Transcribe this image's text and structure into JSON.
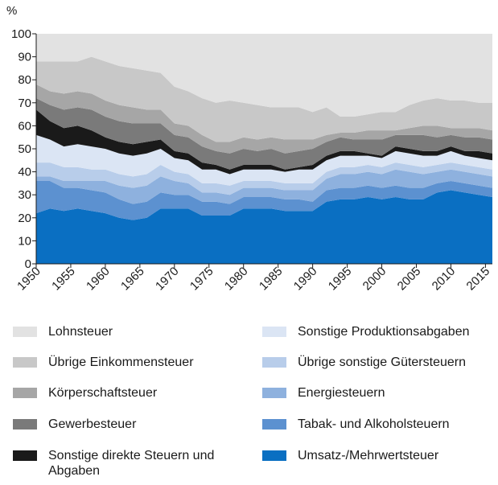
{
  "chart_data": {
    "type": "stacked_area",
    "y_label": "%",
    "x": [
      1950,
      1952,
      1954,
      1956,
      1958,
      1960,
      1962,
      1964,
      1966,
      1968,
      1970,
      1972,
      1974,
      1976,
      1978,
      1980,
      1982,
      1984,
      1986,
      1988,
      1990,
      1992,
      1994,
      1996,
      1998,
      2000,
      2002,
      2004,
      2006,
      2008,
      2010,
      2012,
      2014,
      2016
    ],
    "xlim": [
      1950,
      2016
    ],
    "xticks": [
      1950,
      1955,
      1960,
      1965,
      1970,
      1975,
      1980,
      1985,
      1990,
      1995,
      2000,
      2005,
      2010,
      2015
    ],
    "ylim": [
      0,
      100
    ],
    "yticks": [
      0,
      10,
      20,
      30,
      40,
      50,
      60,
      70,
      80,
      90,
      100
    ],
    "series": [
      {
        "name": "Umsatz-/Mehrwertsteuer",
        "color": "#0a6fc2",
        "values": [
          22,
          24,
          23,
          24,
          23,
          22,
          20,
          19,
          20,
          24,
          24,
          24,
          21,
          21,
          21,
          24,
          24,
          24,
          23,
          23,
          23,
          27,
          28,
          28,
          29,
          28,
          29,
          28,
          28,
          31,
          32,
          31,
          30,
          29
        ]
      },
      {
        "name": "Tabak- und Alkoholsteuern",
        "color": "#5c91d0",
        "values": [
          14,
          12,
          10,
          9,
          9,
          9,
          8,
          7,
          7,
          7,
          6,
          6,
          6,
          6,
          5,
          5,
          5,
          5,
          5,
          5,
          4,
          5,
          5,
          5,
          5,
          5,
          5,
          5,
          5,
          4,
          4,
          4,
          4,
          4
        ]
      },
      {
        "name": "Energiesteuern",
        "color": "#8eb1de",
        "values": [
          2,
          2,
          3,
          3,
          4,
          5,
          6,
          7,
          7,
          7,
          6,
          5,
          4,
          4,
          4,
          4,
          4,
          4,
          4,
          4,
          5,
          5,
          6,
          6,
          6,
          6,
          7,
          7,
          6,
          5,
          5,
          5,
          5,
          5
        ]
      },
      {
        "name": "Übrige sonstige Gütersteuern",
        "color": "#b8cdea",
        "values": [
          6,
          6,
          6,
          6,
          5,
          5,
          5,
          5,
          5,
          5,
          4,
          4,
          4,
          4,
          4,
          3,
          3,
          3,
          3,
          3,
          3,
          3,
          3,
          3,
          3,
          3,
          3,
          3,
          3,
          3,
          3,
          3,
          3,
          3
        ]
      },
      {
        "name": "Sonstige Produktionsabgaben",
        "color": "#dbe5f4",
        "values": [
          12,
          10,
          9,
          10,
          10,
          9,
          9,
          9,
          9,
          7,
          6,
          6,
          6,
          6,
          5,
          5,
          5,
          5,
          5,
          6,
          6,
          5,
          5,
          5,
          4,
          4,
          5,
          5,
          5,
          4,
          5,
          4,
          4,
          4
        ]
      },
      {
        "name": "Sonstige direkte Steuern und Abgaben",
        "color": "#1a1a1a",
        "values": [
          11,
          8,
          8,
          8,
          7,
          5,
          5,
          5,
          5,
          4,
          3,
          3,
          3,
          2,
          2,
          2,
          2,
          2,
          1,
          1,
          2,
          2,
          2,
          2,
          1,
          1,
          2,
          2,
          2,
          2,
          2,
          2,
          3,
          3
        ]
      },
      {
        "name": "Gewerbesteuer",
        "color": "#7a7a7a",
        "values": [
          5,
          7,
          8,
          8,
          9,
          9,
          9,
          9,
          8,
          7,
          7,
          7,
          7,
          6,
          7,
          7,
          6,
          7,
          7,
          7,
          7,
          6,
          6,
          5,
          6,
          7,
          5,
          6,
          7,
          6,
          5,
          6,
          6,
          6
        ]
      },
      {
        "name": "Körperschaftsteuer",
        "color": "#a6a6a6",
        "values": [
          6,
          6,
          7,
          7,
          7,
          7,
          7,
          7,
          6,
          6,
          5,
          5,
          5,
          4,
          5,
          5,
          5,
          5,
          6,
          5,
          4,
          3,
          2,
          3,
          4,
          4,
          2,
          3,
          4,
          5,
          3,
          4,
          4,
          4
        ]
      },
      {
        "name": "Übrige Einkommensteuer",
        "color": "#c8c8c8",
        "values": [
          10,
          13,
          14,
          13,
          16,
          17,
          17,
          17,
          17,
          16,
          16,
          15,
          16,
          17,
          18,
          15,
          15,
          13,
          14,
          14,
          12,
          12,
          7,
          7,
          7,
          8,
          8,
          10,
          11,
          12,
          12,
          12,
          11,
          12
        ]
      },
      {
        "name": "Lohnsteuer",
        "color": "#e2e2e2",
        "values": [
          12,
          12,
          12,
          12,
          10,
          12,
          14,
          15,
          16,
          17,
          23,
          25,
          28,
          30,
          29,
          30,
          31,
          32,
          32,
          32,
          34,
          32,
          36,
          36,
          35,
          34,
          34,
          31,
          29,
          28,
          29,
          29,
          30,
          30
        ]
      }
    ]
  }
}
